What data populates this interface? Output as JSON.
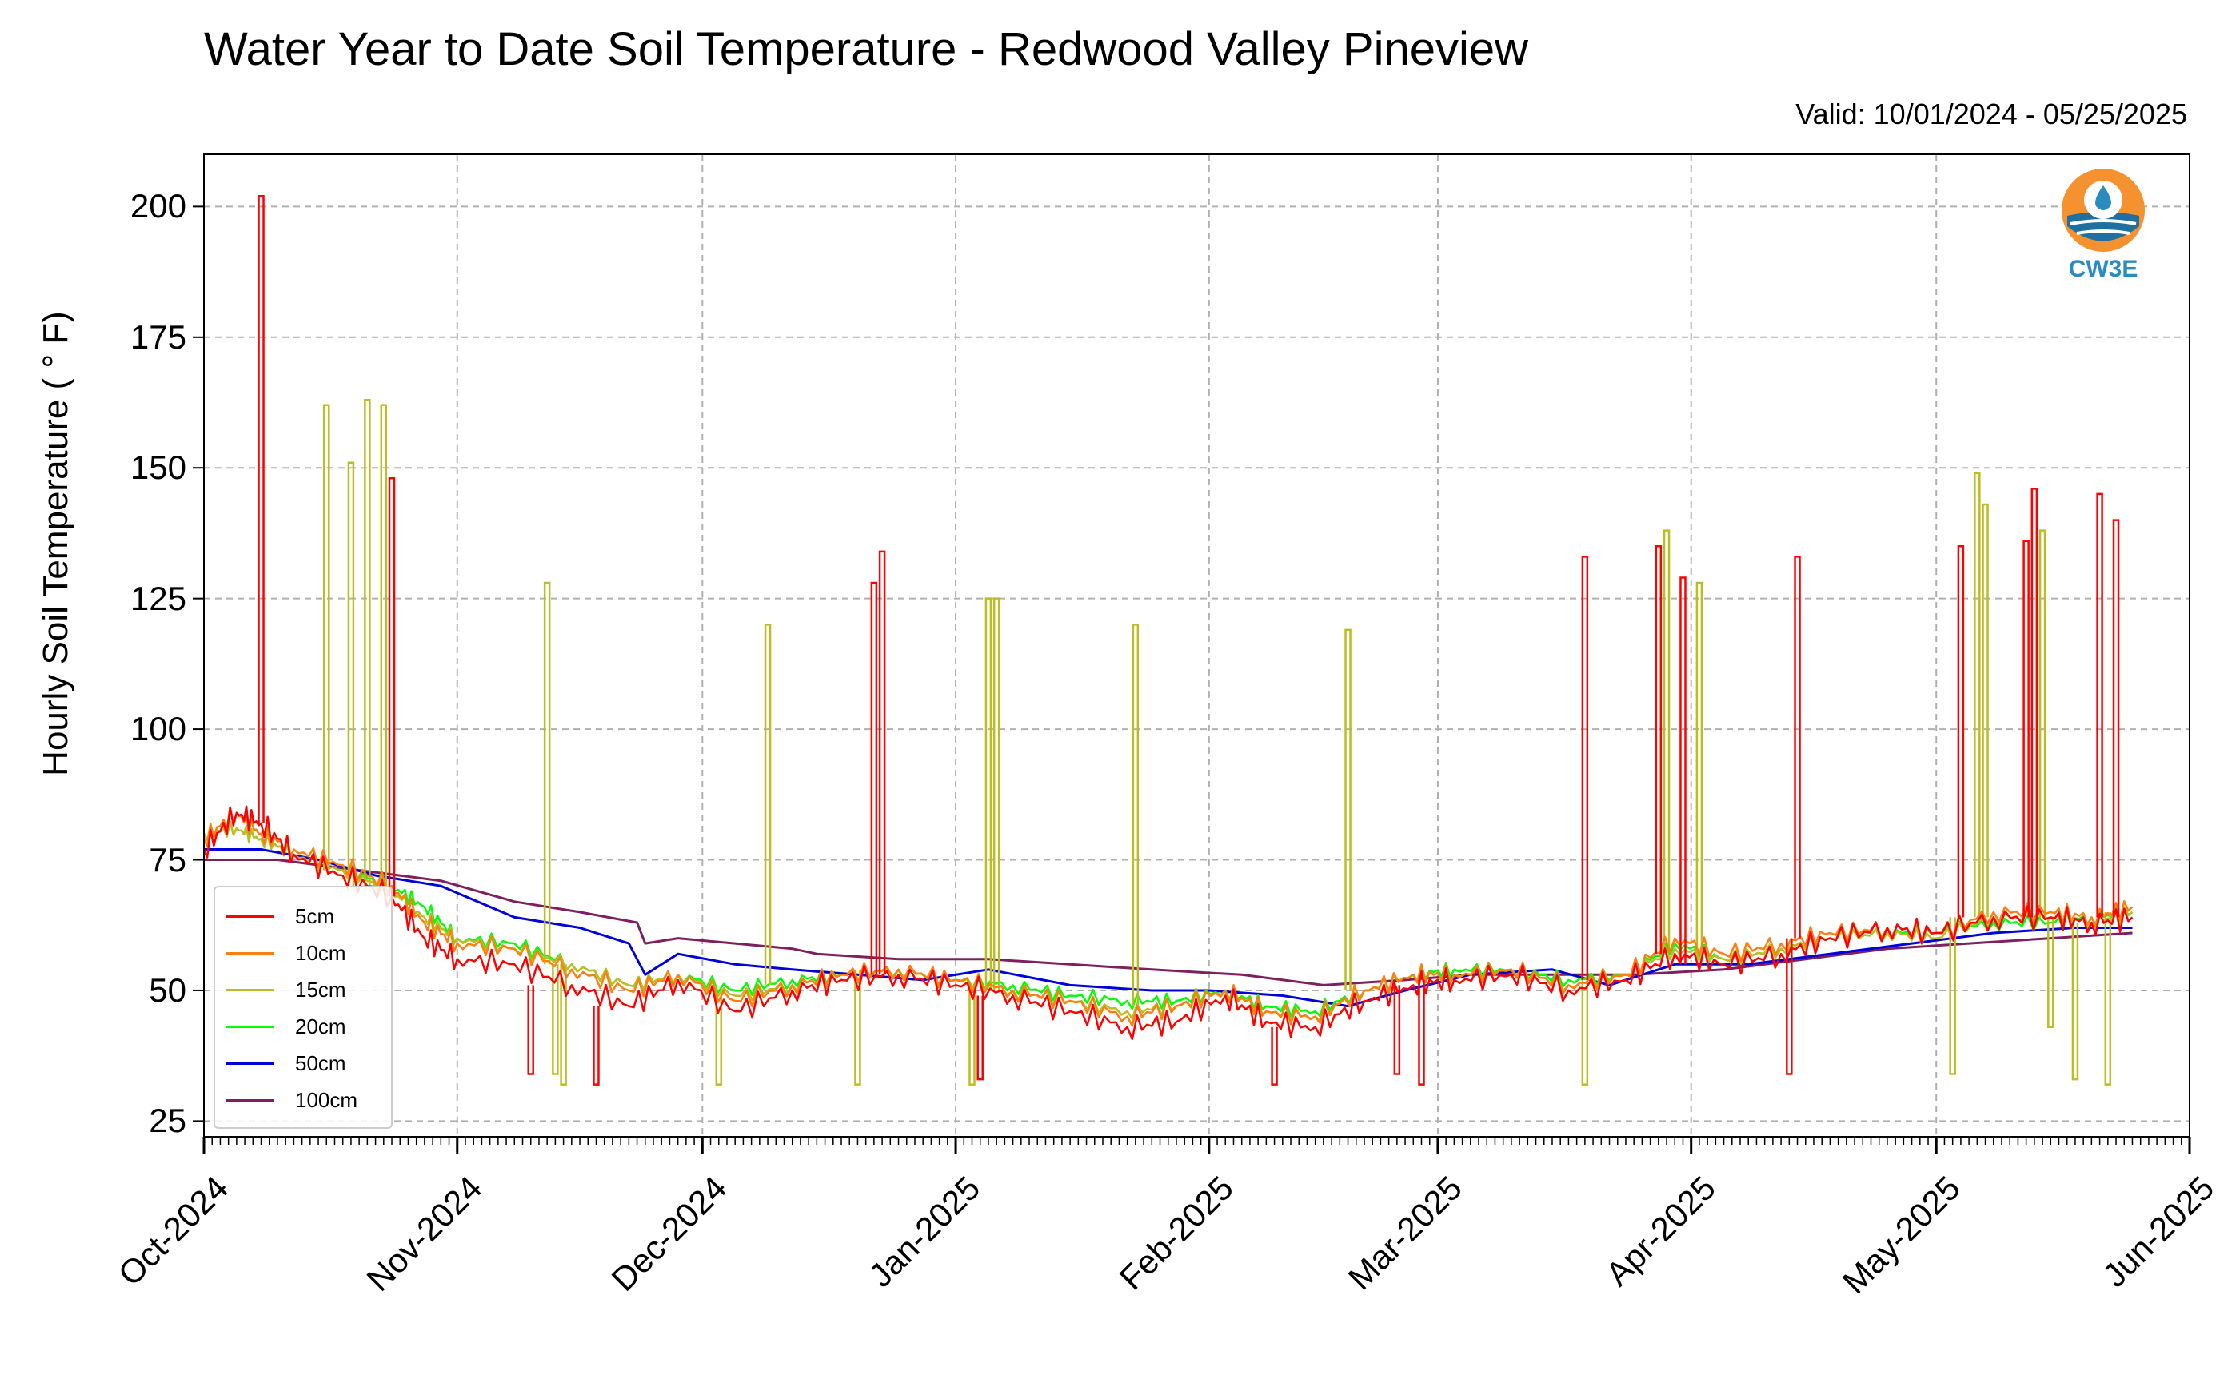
{
  "title": "Water Year to Date Soil Temperature - Redwood Valley Pineview",
  "valid": "Valid: 10/01/2024 - 05/25/2025",
  "logo": {
    "text": "CW3E"
  },
  "chart_data": {
    "type": "line",
    "ylabel": "Hourly Soil Temperature ( ° F)",
    "ylim": [
      22,
      210
    ],
    "yticks": [
      25,
      50,
      75,
      100,
      125,
      150,
      175,
      200
    ],
    "xlim": [
      "2024-10-01",
      "2025-06-01"
    ],
    "xticks": [
      {
        "date": "2024-10-01",
        "label": "Oct-2024"
      },
      {
        "date": "2024-11-01",
        "label": "Nov-2024"
      },
      {
        "date": "2024-12-01",
        "label": "Dec-2024"
      },
      {
        "date": "2025-01-01",
        "label": "Jan-2025"
      },
      {
        "date": "2025-02-01",
        "label": "Feb-2025"
      },
      {
        "date": "2025-03-01",
        "label": "Mar-2025"
      },
      {
        "date": "2025-04-01",
        "label": "Apr-2025"
      },
      {
        "date": "2025-05-01",
        "label": "May-2025"
      },
      {
        "date": "2025-06-01",
        "label": "Jun-2025"
      }
    ],
    "grid": true,
    "legend_position": "bottom-left",
    "series": [
      {
        "name": "5cm",
        "color": "#ff0000",
        "x": [
          "2024-10-01",
          "2024-10-05",
          "2024-10-08",
          "2024-10-12",
          "2024-10-18",
          "2024-10-24",
          "2024-10-28",
          "2024-11-01",
          "2024-11-08",
          "2024-11-15",
          "2024-11-22",
          "2024-11-28",
          "2024-12-05",
          "2024-12-12",
          "2024-12-18",
          "2024-12-25",
          "2025-01-01",
          "2025-01-08",
          "2025-01-15",
          "2025-01-22",
          "2025-01-28",
          "2025-02-03",
          "2025-02-08",
          "2025-02-14",
          "2025-02-20",
          "2025-02-26",
          "2025-03-03",
          "2025-03-10",
          "2025-03-17",
          "2025-03-24",
          "2025-03-30",
          "2025-04-05",
          "2025-04-12",
          "2025-04-18",
          "2025-04-25",
          "2025-05-01",
          "2025-05-08",
          "2025-05-15",
          "2025-05-20",
          "2025-05-25"
        ],
        "y": [
          77,
          84,
          82,
          76,
          72,
          68,
          60,
          56,
          55,
          51,
          47,
          52,
          46,
          50,
          52,
          53,
          51,
          49,
          46,
          43,
          44,
          49,
          44,
          43,
          48,
          51,
          52,
          53,
          50,
          52,
          57,
          55,
          57,
          60,
          62,
          61,
          64,
          64,
          63,
          64
        ],
        "spikes": [
          {
            "x": "2024-10-08",
            "y": 202
          },
          {
            "x": "2024-10-24",
            "y": 148
          },
          {
            "x": "2024-12-22",
            "y": 128
          },
          {
            "x": "2024-12-23",
            "y": 134
          },
          {
            "x": "2025-03-19",
            "y": 133
          },
          {
            "x": "2025-03-28",
            "y": 135
          },
          {
            "x": "2025-03-31",
            "y": 129
          },
          {
            "x": "2025-04-14",
            "y": 133
          },
          {
            "x": "2025-05-04",
            "y": 135
          },
          {
            "x": "2025-05-12",
            "y": 136
          },
          {
            "x": "2025-05-13",
            "y": 146
          },
          {
            "x": "2025-05-21",
            "y": 145
          },
          {
            "x": "2025-05-23",
            "y": 140
          },
          {
            "x": "2024-11-10",
            "y": 34
          },
          {
            "x": "2024-11-18",
            "y": 32
          },
          {
            "x": "2025-01-04",
            "y": 33
          },
          {
            "x": "2025-02-09",
            "y": 32
          },
          {
            "x": "2025-02-24",
            "y": 34
          },
          {
            "x": "2025-02-27",
            "y": 32
          },
          {
            "x": "2025-04-13",
            "y": 34
          }
        ]
      },
      {
        "name": "10cm",
        "color": "#ff7f0e",
        "x": [
          "2024-10-01",
          "2024-10-05",
          "2024-10-08",
          "2024-10-12",
          "2024-10-18",
          "2024-10-24",
          "2024-10-28",
          "2024-11-01",
          "2024-11-08",
          "2024-11-15",
          "2024-11-22",
          "2024-11-28",
          "2024-12-05",
          "2024-12-12",
          "2024-12-18",
          "2024-12-25",
          "2025-01-01",
          "2025-01-08",
          "2025-01-15",
          "2025-01-22",
          "2025-01-28",
          "2025-02-03",
          "2025-02-08",
          "2025-02-14",
          "2025-02-20",
          "2025-02-26",
          "2025-03-03",
          "2025-03-10",
          "2025-03-17",
          "2025-03-24",
          "2025-03-30",
          "2025-04-05",
          "2025-04-12",
          "2025-04-18",
          "2025-04-25",
          "2025-05-01",
          "2025-05-08",
          "2025-05-15",
          "2025-05-20",
          "2025-05-25"
        ],
        "y": [
          79,
          84,
          80,
          77,
          74,
          70,
          63,
          59,
          58,
          54,
          50,
          53,
          48,
          51,
          53,
          54,
          52,
          50,
          48,
          45,
          47,
          50,
          46,
          45,
          50,
          53,
          53,
          54,
          51,
          53,
          60,
          57,
          59,
          61,
          62,
          61,
          65,
          65,
          64,
          66
        ]
      },
      {
        "name": "15cm",
        "color": "#bcbd22",
        "x": [
          "2024-10-01",
          "2024-10-05",
          "2024-10-08",
          "2024-10-12",
          "2024-10-18",
          "2024-10-24",
          "2024-10-28",
          "2024-11-01",
          "2024-11-08",
          "2024-11-15",
          "2024-11-22",
          "2024-11-28",
          "2024-12-05",
          "2024-12-12",
          "2024-12-18",
          "2024-12-25",
          "2025-01-01",
          "2025-01-08",
          "2025-01-15",
          "2025-01-22",
          "2025-01-28",
          "2025-02-03",
          "2025-02-08",
          "2025-02-14",
          "2025-02-20",
          "2025-02-26",
          "2025-03-03",
          "2025-03-10",
          "2025-03-17",
          "2025-03-24",
          "2025-03-30",
          "2025-04-05",
          "2025-04-12",
          "2025-04-18",
          "2025-04-25",
          "2025-05-01",
          "2025-05-08",
          "2025-05-15",
          "2025-05-20",
          "2025-05-25"
        ],
        "y": [
          80,
          81,
          79,
          76,
          73,
          69,
          64,
          60,
          58,
          55,
          51,
          53,
          49,
          51,
          53,
          54,
          52,
          50,
          48,
          46,
          47,
          50,
          46,
          45,
          50,
          53,
          53,
          54,
          51,
          53,
          58,
          56,
          58,
          60,
          61,
          60,
          64,
          64,
          63,
          65
        ],
        "spikes": [
          {
            "x": "2024-10-16",
            "y": 162
          },
          {
            "x": "2024-10-19",
            "y": 151
          },
          {
            "x": "2024-10-21",
            "y": 163
          },
          {
            "x": "2024-10-23",
            "y": 162
          },
          {
            "x": "2024-11-12",
            "y": 128
          },
          {
            "x": "2024-12-09",
            "y": 120
          },
          {
            "x": "2025-01-05",
            "y": 125
          },
          {
            "x": "2025-01-06",
            "y": 125
          },
          {
            "x": "2025-01-23",
            "y": 120
          },
          {
            "x": "2025-02-18",
            "y": 119
          },
          {
            "x": "2025-03-29",
            "y": 138
          },
          {
            "x": "2025-04-02",
            "y": 128
          },
          {
            "x": "2025-05-06",
            "y": 149
          },
          {
            "x": "2025-05-07",
            "y": 143
          },
          {
            "x": "2025-05-14",
            "y": 138
          },
          {
            "x": "2024-11-13",
            "y": 34
          },
          {
            "x": "2024-11-14",
            "y": 32
          },
          {
            "x": "2024-12-03",
            "y": 32
          },
          {
            "x": "2024-12-20",
            "y": 32
          },
          {
            "x": "2025-01-03",
            "y": 32
          },
          {
            "x": "2025-03-19",
            "y": 32
          },
          {
            "x": "2025-05-03",
            "y": 34
          },
          {
            "x": "2025-05-15",
            "y": 43
          },
          {
            "x": "2025-05-18",
            "y": 33
          },
          {
            "x": "2025-05-22",
            "y": 32
          }
        ]
      },
      {
        "name": "20cm",
        "color": "#00ff00",
        "x": [
          "2024-10-01",
          "2024-10-05",
          "2024-10-08",
          "2024-10-12",
          "2024-10-18",
          "2024-10-24",
          "2024-10-28",
          "2024-11-01",
          "2024-11-08",
          "2024-11-15",
          "2024-11-22",
          "2024-11-28",
          "2024-12-05",
          "2024-12-12",
          "2024-12-18",
          "2024-12-25",
          "2025-01-01",
          "2025-01-08",
          "2025-01-15",
          "2025-01-22",
          "2025-01-28",
          "2025-02-03",
          "2025-02-08",
          "2025-02-14",
          "2025-02-20",
          "2025-02-26",
          "2025-03-03",
          "2025-03-10",
          "2025-03-17",
          "2025-03-24",
          "2025-03-30",
          "2025-04-05",
          "2025-04-12",
          "2025-04-18",
          "2025-04-25",
          "2025-05-01",
          "2025-05-08",
          "2025-05-15",
          "2025-05-20",
          "2025-05-25"
        ],
        "y": [
          80,
          81,
          79,
          76,
          73,
          70,
          66,
          60,
          59,
          55,
          51,
          53,
          50,
          52,
          53,
          54,
          52,
          51,
          49,
          48,
          48,
          50,
          47,
          46,
          50,
          53,
          54,
          54,
          52,
          53,
          59,
          56,
          58,
          60,
          61,
          61,
          63,
          63,
          64,
          65
        ]
      },
      {
        "name": "50cm",
        "color": "#0000dd",
        "x": [
          "2024-10-01",
          "2024-10-08",
          "2024-10-15",
          "2024-10-22",
          "2024-10-30",
          "2024-11-08",
          "2024-11-16",
          "2024-11-22",
          "2024-11-24",
          "2024-11-28",
          "2024-12-05",
          "2024-12-12",
          "2024-12-20",
          "2024-12-28",
          "2025-01-05",
          "2025-01-15",
          "2025-01-25",
          "2025-02-01",
          "2025-02-10",
          "2025-02-18",
          "2025-02-25",
          "2025-03-05",
          "2025-03-15",
          "2025-03-22",
          "2025-03-30",
          "2025-04-08",
          "2025-04-18",
          "2025-04-28",
          "2025-05-08",
          "2025-05-18",
          "2025-05-25"
        ],
        "y": [
          77,
          77,
          75,
          72,
          70,
          64,
          62,
          59,
          53,
          57,
          55,
          54,
          53,
          52,
          54,
          51,
          50,
          50,
          49,
          47,
          50,
          53,
          54,
          51,
          55,
          55,
          57,
          59,
          61,
          62,
          62
        ]
      },
      {
        "name": "100cm",
        "color": "#7f1f5f",
        "x": [
          "2024-10-01",
          "2024-10-10",
          "2024-10-20",
          "2024-10-30",
          "2024-11-08",
          "2024-11-16",
          "2024-11-23",
          "2024-11-24",
          "2024-11-28",
          "2024-12-05",
          "2024-12-12",
          "2024-12-15",
          "2024-12-25",
          "2025-01-05",
          "2025-01-15",
          "2025-01-25",
          "2025-02-05",
          "2025-02-15",
          "2025-02-25",
          "2025-03-05",
          "2025-03-15",
          "2025-03-25",
          "2025-04-05",
          "2025-04-15",
          "2025-04-25",
          "2025-05-05",
          "2025-05-15",
          "2025-05-25"
        ],
        "y": [
          75,
          75,
          73,
          71,
          67,
          65,
          63,
          59,
          60,
          59,
          58,
          57,
          56,
          56,
          55,
          54,
          53,
          51,
          52,
          53,
          53,
          53,
          54,
          56,
          58,
          59,
          60,
          61
        ]
      }
    ]
  }
}
